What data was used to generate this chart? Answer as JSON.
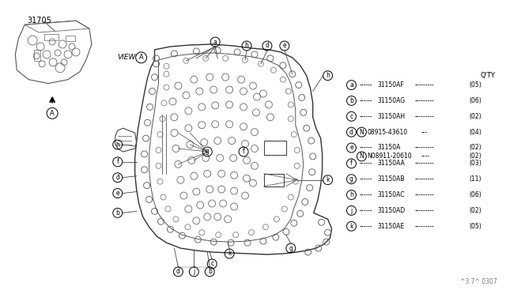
{
  "bg_color": "#ffffff",
  "fig_width": 6.4,
  "fig_height": 3.72,
  "part_number_label": "31705",
  "bottom_label": "^3 7^ 0307",
  "qty_label": "Q'TY",
  "line_color": "#444444",
  "text_color": "#000000",
  "parts_list": [
    {
      "key": "a",
      "part": "31150AF",
      "qty": "(05)",
      "n_prefix": false,
      "sub": null
    },
    {
      "key": "b",
      "part": "31150AG",
      "qty": "(06)",
      "n_prefix": false,
      "sub": null
    },
    {
      "key": "c",
      "part": "31150AH",
      "qty": "(02)",
      "n_prefix": false,
      "sub": null
    },
    {
      "key": "d",
      "part": "08915-43610",
      "qty": "(04)",
      "n_prefix": true,
      "sub": null
    },
    {
      "key": "e",
      "part": "31150A",
      "qty": "(02)",
      "n_prefix": false,
      "sub": {
        "label": "N08911-20610",
        "qty": "(02)"
      }
    },
    {
      "key": "f",
      "part": "31150AA",
      "qty": "(03)",
      "n_prefix": false,
      "sub": null
    },
    {
      "key": "g",
      "part": "31150AB",
      "qty": "(11)",
      "n_prefix": false,
      "sub": null
    },
    {
      "key": "h",
      "part": "31150AC",
      "qty": "(06)",
      "n_prefix": false,
      "sub": null
    },
    {
      "key": "j",
      "part": "31150AD",
      "qty": "(02)",
      "n_prefix": false,
      "sub": null
    },
    {
      "key": "k",
      "part": "31150AE",
      "qty": "(05)",
      "n_prefix": false,
      "sub": null
    }
  ]
}
